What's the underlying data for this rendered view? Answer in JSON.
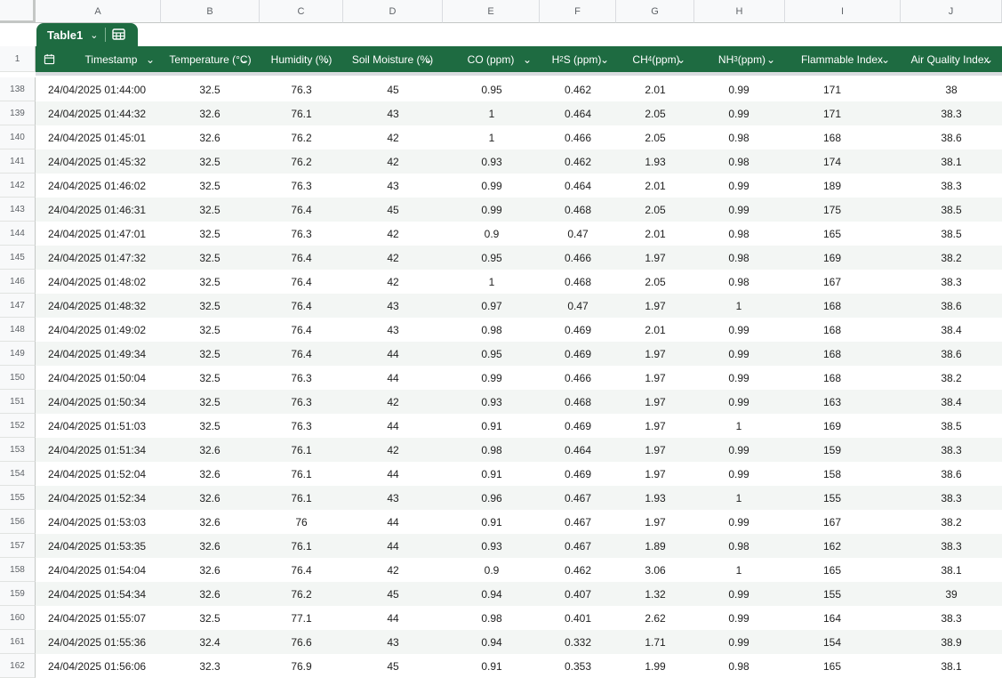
{
  "columns": [
    "A",
    "B",
    "C",
    "D",
    "E",
    "F",
    "G",
    "H",
    "I",
    "J"
  ],
  "header_row_number": "1",
  "table_tab": {
    "name": "Table1",
    "chevron": "⌄"
  },
  "headers": [
    {
      "label": "Timestamp"
    },
    {
      "label": "Temperature (°C)"
    },
    {
      "label": "Humidity (%)"
    },
    {
      "label": "Soil Moisture (%)"
    },
    {
      "label": "CO (ppm)"
    },
    {
      "pre": "H",
      "sub": "2",
      "post": "S (ppm)"
    },
    {
      "pre": "CH",
      "sub": "4",
      "post": " (ppm)"
    },
    {
      "pre": "NH",
      "sub": "3",
      "post": " (ppm)"
    },
    {
      "label": "Flammable Index"
    },
    {
      "label": "Air Quality Index"
    }
  ],
  "rows": [
    {
      "n": "138",
      "v": [
        "24/04/2025 01:44:00",
        "32.5",
        "76.3",
        "45",
        "0.95",
        "0.462",
        "2.01",
        "0.99",
        "171",
        "38"
      ]
    },
    {
      "n": "139",
      "v": [
        "24/04/2025 01:44:32",
        "32.6",
        "76.1",
        "43",
        "1",
        "0.464",
        "2.05",
        "0.99",
        "171",
        "38.3"
      ]
    },
    {
      "n": "140",
      "v": [
        "24/04/2025 01:45:01",
        "32.6",
        "76.2",
        "42",
        "1",
        "0.466",
        "2.05",
        "0.98",
        "168",
        "38.6"
      ]
    },
    {
      "n": "141",
      "v": [
        "24/04/2025 01:45:32",
        "32.5",
        "76.2",
        "42",
        "0.93",
        "0.462",
        "1.93",
        "0.98",
        "174",
        "38.1"
      ]
    },
    {
      "n": "142",
      "v": [
        "24/04/2025 01:46:02",
        "32.5",
        "76.3",
        "43",
        "0.99",
        "0.464",
        "2.01",
        "0.99",
        "189",
        "38.3"
      ]
    },
    {
      "n": "143",
      "v": [
        "24/04/2025 01:46:31",
        "32.5",
        "76.4",
        "45",
        "0.99",
        "0.468",
        "2.05",
        "0.99",
        "175",
        "38.5"
      ]
    },
    {
      "n": "144",
      "v": [
        "24/04/2025 01:47:01",
        "32.5",
        "76.3",
        "42",
        "0.9",
        "0.47",
        "2.01",
        "0.98",
        "165",
        "38.5"
      ]
    },
    {
      "n": "145",
      "v": [
        "24/04/2025 01:47:32",
        "32.5",
        "76.4",
        "42",
        "0.95",
        "0.466",
        "1.97",
        "0.98",
        "169",
        "38.2"
      ]
    },
    {
      "n": "146",
      "v": [
        "24/04/2025 01:48:02",
        "32.5",
        "76.4",
        "42",
        "1",
        "0.468",
        "2.05",
        "0.98",
        "167",
        "38.3"
      ]
    },
    {
      "n": "147",
      "v": [
        "24/04/2025 01:48:32",
        "32.5",
        "76.4",
        "43",
        "0.97",
        "0.47",
        "1.97",
        "1",
        "168",
        "38.6"
      ]
    },
    {
      "n": "148",
      "v": [
        "24/04/2025 01:49:02",
        "32.5",
        "76.4",
        "43",
        "0.98",
        "0.469",
        "2.01",
        "0.99",
        "168",
        "38.4"
      ]
    },
    {
      "n": "149",
      "v": [
        "24/04/2025 01:49:34",
        "32.5",
        "76.4",
        "44",
        "0.95",
        "0.469",
        "1.97",
        "0.99",
        "168",
        "38.6"
      ]
    },
    {
      "n": "150",
      "v": [
        "24/04/2025 01:50:04",
        "32.5",
        "76.3",
        "44",
        "0.99",
        "0.466",
        "1.97",
        "0.99",
        "168",
        "38.2"
      ]
    },
    {
      "n": "151",
      "v": [
        "24/04/2025 01:50:34",
        "32.5",
        "76.3",
        "42",
        "0.93",
        "0.468",
        "1.97",
        "0.99",
        "163",
        "38.4"
      ]
    },
    {
      "n": "152",
      "v": [
        "24/04/2025 01:51:03",
        "32.5",
        "76.3",
        "44",
        "0.91",
        "0.469",
        "1.97",
        "1",
        "169",
        "38.5"
      ]
    },
    {
      "n": "153",
      "v": [
        "24/04/2025 01:51:34",
        "32.6",
        "76.1",
        "42",
        "0.98",
        "0.464",
        "1.97",
        "0.99",
        "159",
        "38.3"
      ]
    },
    {
      "n": "154",
      "v": [
        "24/04/2025 01:52:04",
        "32.6",
        "76.1",
        "44",
        "0.91",
        "0.469",
        "1.97",
        "0.99",
        "158",
        "38.6"
      ]
    },
    {
      "n": "155",
      "v": [
        "24/04/2025 01:52:34",
        "32.6",
        "76.1",
        "43",
        "0.96",
        "0.467",
        "1.93",
        "1",
        "155",
        "38.3"
      ]
    },
    {
      "n": "156",
      "v": [
        "24/04/2025 01:53:03",
        "32.6",
        "76",
        "44",
        "0.91",
        "0.467",
        "1.97",
        "0.99",
        "167",
        "38.2"
      ]
    },
    {
      "n": "157",
      "v": [
        "24/04/2025 01:53:35",
        "32.6",
        "76.1",
        "44",
        "0.93",
        "0.467",
        "1.89",
        "0.98",
        "162",
        "38.3"
      ]
    },
    {
      "n": "158",
      "v": [
        "24/04/2025 01:54:04",
        "32.6",
        "76.4",
        "42",
        "0.9",
        "0.462",
        "3.06",
        "1",
        "165",
        "38.1"
      ]
    },
    {
      "n": "159",
      "v": [
        "24/04/2025 01:54:34",
        "32.6",
        "76.2",
        "45",
        "0.94",
        "0.407",
        "1.32",
        "0.99",
        "155",
        "39"
      ]
    },
    {
      "n": "160",
      "v": [
        "24/04/2025 01:55:07",
        "32.5",
        "77.1",
        "44",
        "0.98",
        "0.401",
        "2.62",
        "0.99",
        "164",
        "38.3"
      ]
    },
    {
      "n": "161",
      "v": [
        "24/04/2025 01:55:36",
        "32.4",
        "76.6",
        "43",
        "0.94",
        "0.332",
        "1.71",
        "0.99",
        "154",
        "38.9"
      ]
    },
    {
      "n": "162",
      "v": [
        "24/04/2025 01:56:06",
        "32.3",
        "76.9",
        "45",
        "0.91",
        "0.353",
        "1.99",
        "0.98",
        "165",
        "38.1"
      ]
    }
  ]
}
